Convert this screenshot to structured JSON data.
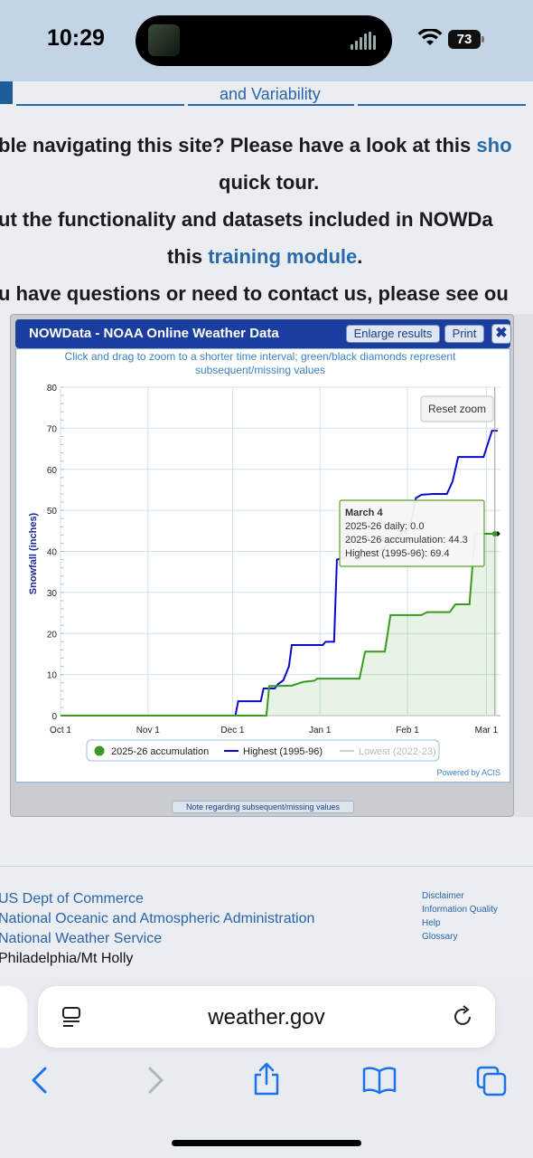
{
  "status_bar": {
    "time": "10:29",
    "battery": "73"
  },
  "page": {
    "nav_item": "and Variability",
    "lines": [
      {
        "text": "ble navigating this site? Please have a look at this ",
        "link": "sho"
      },
      {
        "text": "quick tour.",
        "link": ""
      },
      {
        "text": "ut the functionality and datasets included in NOWDa",
        "link": ""
      },
      {
        "text": "this ",
        "link": "training module",
        "after": "."
      },
      {
        "text": "u have questions or need to contact us, please see ou",
        "link": ""
      }
    ]
  },
  "modal": {
    "title": "NOWData - NOAA Online Weather Data",
    "enlarge_label": "Enlarge results",
    "print_label": "Print",
    "close_glyph": "✖",
    "note_label": "Note regarding subsequent/missing values"
  },
  "chart_data": {
    "type": "line",
    "subtitle": "Click and drag to zoom to a shorter time interval; green/black diamonds represent subsequent/missing values",
    "ylabel": "Snowfall (inches)",
    "ylim": [
      0,
      80
    ],
    "yticks": [
      0,
      10,
      20,
      30,
      40,
      50,
      60,
      70,
      80
    ],
    "x_ticks": [
      {
        "label": "Oct 1",
        "day": 0
      },
      {
        "label": "Nov 1",
        "day": 31
      },
      {
        "label": "Dec 1",
        "day": 61
      },
      {
        "label": "Jan 1",
        "day": 92
      },
      {
        "label": "Feb 1",
        "day": 123
      },
      {
        "label": "Mar 1",
        "day": 151
      }
    ],
    "x_max_day": 156,
    "reset_zoom_label": "Reset zoom",
    "credit": "Powered by ACIS",
    "series": [
      {
        "name": "2025-26 accumulation",
        "color": "#3a9a20",
        "points": [
          [
            0,
            0
          ],
          [
            73,
            0
          ],
          [
            74,
            7.2
          ],
          [
            82,
            7.3
          ],
          [
            86,
            8.2
          ],
          [
            90,
            8.5
          ],
          [
            91,
            9
          ],
          [
            106,
            9
          ],
          [
            108,
            15.6
          ],
          [
            115,
            15.6
          ],
          [
            117,
            24.5
          ],
          [
            128,
            24.5
          ],
          [
            130,
            25.2
          ],
          [
            138,
            25.2
          ],
          [
            140,
            27.1
          ],
          [
            145,
            27.1
          ],
          [
            147,
            44.3
          ],
          [
            155,
            44.3
          ]
        ]
      },
      {
        "name": "Highest (1995-96)",
        "color": "#0a0acc",
        "points": [
          [
            0,
            0
          ],
          [
            62,
            0
          ],
          [
            63,
            3.5
          ],
          [
            71,
            3.5
          ],
          [
            72,
            6.6
          ],
          [
            76,
            6.6
          ],
          [
            77,
            7.6
          ],
          [
            79,
            8.6
          ],
          [
            81,
            12
          ],
          [
            82,
            17.2
          ],
          [
            93,
            17.2
          ],
          [
            94,
            18
          ],
          [
            97,
            18
          ],
          [
            98,
            38
          ],
          [
            101,
            38.5
          ],
          [
            104,
            40
          ],
          [
            113,
            40
          ],
          [
            120,
            44
          ],
          [
            124,
            46
          ],
          [
            126,
            53
          ],
          [
            128,
            53.8
          ],
          [
            132,
            54
          ],
          [
            137,
            54
          ],
          [
            139,
            57
          ],
          [
            141,
            63
          ],
          [
            150,
            63
          ],
          [
            153,
            69.4
          ],
          [
            155,
            69.4
          ]
        ]
      },
      {
        "name": "Lowest (2022-23)",
        "color": "#cfcfcf",
        "points": [
          [
            0,
            0
          ],
          [
            155,
            0
          ]
        ]
      }
    ],
    "tooltip": {
      "date": "March 4",
      "daily": "2025-26 daily: 0.0",
      "accum": "2025-26 accumulation: 44.3",
      "highest": "Highest (1995-96): 69.4"
    },
    "missing_marker_day": 155,
    "missing_marker_value": 44.3
  },
  "footer": {
    "links": [
      "US Dept of Commerce",
      "National Oceanic and Atmospheric Administration",
      "National Weather Service"
    ],
    "city": "Philadelphia/Mt Holly",
    "small_links": [
      "Disclaimer",
      "Information Quality",
      "Help",
      "Glossary"
    ]
  },
  "safari": {
    "url": "weather.gov"
  }
}
